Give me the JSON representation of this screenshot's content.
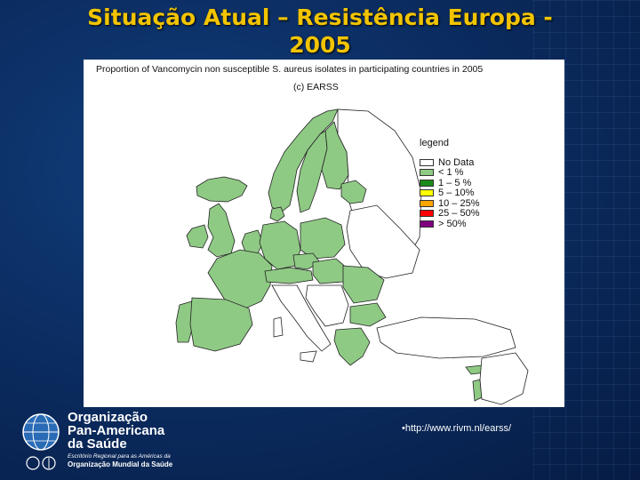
{
  "slide": {
    "title_line1": "Situação Atual – Resistência Europa -",
    "title_line2": "2005",
    "source_url": "•http://www.rivm.nl/earss/"
  },
  "map": {
    "caption": "Proportion of Vancomycin non susceptible S. aureus isolates in participating countries in 2005",
    "copyright": "(c) EARSS",
    "colors": {
      "no_data": "#ffffff",
      "lt_1": "#8fca85",
      "r1_5": "#1a8a1a",
      "r5_10": "#ffff00",
      "r10_25": "#ffa500",
      "r25_50": "#ff0000",
      "gt_50": "#800080",
      "border": "#222222"
    },
    "legend": {
      "title": "legend",
      "entries": [
        {
          "label": "No Data",
          "color": "#ffffff"
        },
        {
          "label": "< 1 %",
          "color": "#8fca85"
        },
        {
          "label": "1 – 5 %",
          "color": "#1a8a1a"
        },
        {
          "label": "5 – 10%",
          "color": "#ffff00"
        },
        {
          "label": "10 – 25%",
          "color": "#ffa500"
        },
        {
          "label": "25 – 50%",
          "color": "#ff0000"
        },
        {
          "label": "> 50%",
          "color": "#800080"
        }
      ]
    }
  },
  "logo": {
    "line1": "Organização",
    "line2": "Pan-Americana",
    "line3": "da Saúde",
    "sub1": "Escritório Regional para as Américas da",
    "sub2": "Organização Mundial da Saúde",
    "icon": "globe-icon"
  }
}
